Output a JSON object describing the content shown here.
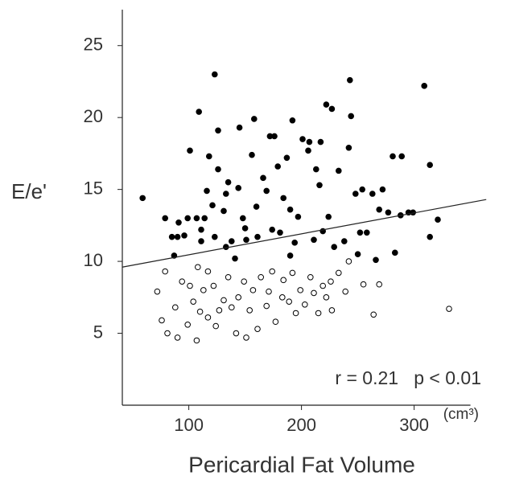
{
  "chart_data": {
    "type": "scatter",
    "y_label": "E/e'",
    "x_label": "Pericardial Fat Volume",
    "x_unit": "(cm³)",
    "annotation": "r = 0.21   p < 0.01",
    "xlim": [
      41,
      350
    ],
    "ylim": [
      0,
      27.5
    ],
    "xticks": [
      100,
      200,
      300
    ],
    "yticks": [
      5,
      10,
      15,
      20,
      25
    ],
    "color": "#000000",
    "series": [
      {
        "marker": "filled",
        "x": [
          59,
          79,
          85,
          90,
          91,
          96,
          99,
          101,
          109,
          107,
          111,
          111,
          114,
          116,
          118,
          121,
          123,
          126,
          123,
          126,
          131,
          133,
          135,
          138,
          141,
          145,
          144,
          148,
          150,
          151,
          156,
          158,
          160,
          161,
          166,
          169,
          172,
          174,
          176,
          179,
          181,
          184,
          187,
          190,
          192,
          194,
          197,
          201,
          206,
          207,
          211,
          213,
          216,
          217,
          219,
          222,
          224,
          227,
          229,
          233,
          238,
          243,
          244,
          242,
          248,
          252,
          254,
          258,
          263,
          266,
          269,
          272,
          277,
          281,
          283,
          289,
          288,
          295,
          299,
          309,
          314,
          314,
          321,
          87,
          133,
          190,
          250
        ],
        "y": [
          14.4,
          13.0,
          11.7,
          11.7,
          12.7,
          11.8,
          13.0,
          17.7,
          20.4,
          13.0,
          11.4,
          12.2,
          13.0,
          14.9,
          17.3,
          13.9,
          23.0,
          19.1,
          11.7,
          16.4,
          13.5,
          14.7,
          15.5,
          11.4,
          10.2,
          19.3,
          15.1,
          13.0,
          12.3,
          11.5,
          17.4,
          19.9,
          13.8,
          11.7,
          15.8,
          14.9,
          18.7,
          12.2,
          18.7,
          16.6,
          12.0,
          14.4,
          17.2,
          13.6,
          19.8,
          11.3,
          13.1,
          18.5,
          17.7,
          18.3,
          11.5,
          16.4,
          15.3,
          18.3,
          12.1,
          20.9,
          13.1,
          20.6,
          11.0,
          16.3,
          11.4,
          22.6,
          20.1,
          17.9,
          14.7,
          12.0,
          15.0,
          12.0,
          14.7,
          10.1,
          13.6,
          15.0,
          13.4,
          17.3,
          10.6,
          17.3,
          13.2,
          13.4,
          13.4,
          22.2,
          11.7,
          16.7,
          12.9,
          10.4,
          11.0,
          10.4,
          10.5
        ]
      },
      {
        "marker": "open",
        "x": [
          72,
          79,
          76,
          81,
          88,
          90,
          94,
          101,
          107,
          104,
          110,
          113,
          117,
          117,
          122,
          124,
          127,
          131,
          135,
          138,
          142,
          144,
          149,
          151,
          154,
          157,
          161,
          164,
          169,
          171,
          174,
          177,
          183,
          184,
          189,
          192,
          195,
          199,
          203,
          208,
          211,
          215,
          219,
          222,
          226,
          227,
          233,
          239,
          242,
          255,
          264,
          269,
          331,
          108,
          99
        ],
        "y": [
          7.9,
          9.3,
          5.9,
          5.0,
          6.8,
          4.7,
          8.6,
          8.3,
          4.5,
          7.2,
          6.5,
          8.0,
          6.1,
          9.3,
          8.3,
          5.5,
          6.6,
          7.3,
          8.9,
          6.8,
          5.0,
          7.5,
          8.6,
          4.7,
          6.6,
          8.0,
          5.3,
          8.9,
          6.9,
          7.9,
          9.3,
          5.8,
          7.5,
          8.7,
          7.2,
          9.2,
          6.4,
          8.0,
          7.0,
          8.9,
          7.8,
          6.4,
          8.3,
          7.5,
          8.6,
          6.6,
          9.2,
          7.9,
          10.0,
          8.4,
          6.3,
          8.4,
          6.7,
          9.6,
          5.6
        ]
      }
    ],
    "trendline": {
      "x": [
        41,
        364
      ],
      "y": [
        9.6,
        14.3
      ]
    }
  }
}
